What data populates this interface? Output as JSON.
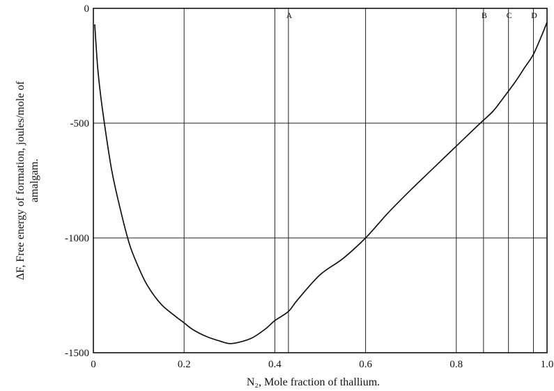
{
  "chart_data": {
    "type": "line",
    "title": "",
    "xlabel": "N₂, Mole fraction of thallium.",
    "ylabel_lines": [
      "ΔF, Free energy of formation, joules/mole of",
      "amalgam."
    ],
    "xlim": [
      0,
      1.0
    ],
    "ylim": [
      -1500,
      0
    ],
    "xticks": [
      0,
      0.2,
      0.4,
      0.6,
      0.8,
      1.0
    ],
    "xtick_labels": [
      "0",
      "0.2",
      "0.4",
      "0.6",
      "0.8",
      "1.0"
    ],
    "yticks": [
      0,
      -500,
      -1000,
      -1500
    ],
    "ytick_labels": [
      "0",
      "-500",
      "-1000",
      "-1500"
    ],
    "grid": true,
    "vertical_markers": [
      {
        "label": "A",
        "x": 0.43
      },
      {
        "label": "B",
        "x": 0.86
      },
      {
        "label": "C",
        "x": 0.915
      },
      {
        "label": "D",
        "x": 0.97
      }
    ],
    "series": [
      {
        "x": [
          0.003,
          0.01,
          0.02,
          0.04,
          0.06,
          0.08,
          0.1,
          0.12,
          0.15,
          0.18,
          0.2,
          0.22,
          0.25,
          0.28,
          0.3,
          0.32,
          0.35,
          0.38,
          0.4,
          0.43,
          0.45,
          0.5,
          0.55,
          0.6,
          0.65,
          0.7,
          0.75,
          0.8,
          0.85,
          0.88,
          0.9,
          0.93,
          0.95,
          0.97,
          0.99,
          1.0
        ],
        "y": [
          -70,
          -270,
          -440,
          -700,
          -880,
          -1030,
          -1130,
          -1210,
          -1290,
          -1340,
          -1370,
          -1400,
          -1430,
          -1450,
          -1460,
          -1455,
          -1435,
          -1395,
          -1360,
          -1320,
          -1270,
          -1160,
          -1090,
          -1000,
          -890,
          -790,
          -695,
          -600,
          -505,
          -450,
          -400,
          -320,
          -260,
          -200,
          -110,
          -60
        ]
      }
    ]
  }
}
